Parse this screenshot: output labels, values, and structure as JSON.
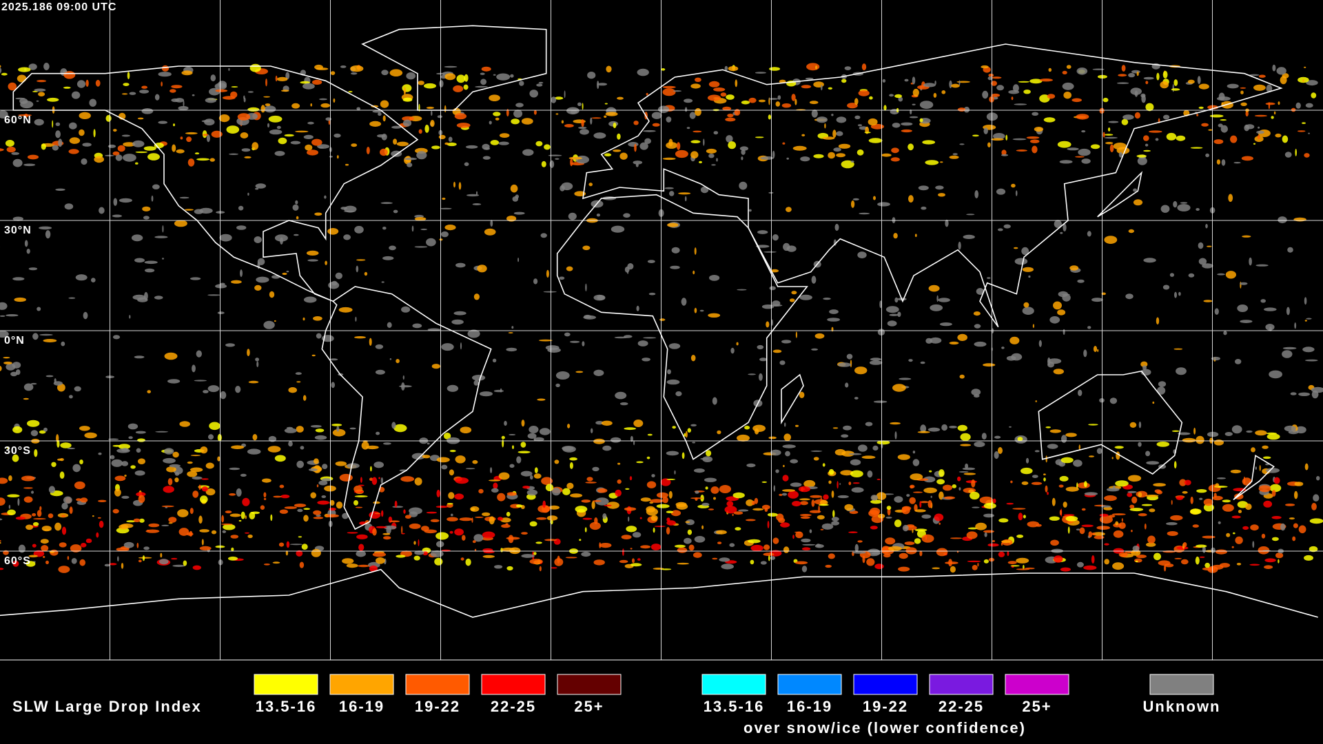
{
  "timestamp": "2025.186 09:00 UTC",
  "latitude_labels": [
    "60°N",
    "30°N",
    "0°N",
    "30°S",
    "60°S"
  ],
  "legend": {
    "title": "SLW Large Drop Index",
    "groups": [
      {
        "items": [
          {
            "label": "13.5-16",
            "color": "#ffff00"
          },
          {
            "label": "16-19",
            "color": "#ffa500"
          },
          {
            "label": "19-22",
            "color": "#ff5a00"
          },
          {
            "label": "22-25",
            "color": "#ff0000"
          },
          {
            "label": "25+",
            "color": "#640000"
          }
        ]
      },
      {
        "items": [
          {
            "label": "13.5-16",
            "color": "#00ffff"
          },
          {
            "label": "16-19",
            "color": "#0088ff"
          },
          {
            "label": "19-22",
            "color": "#0000ff"
          },
          {
            "label": "22-25",
            "color": "#7a1ae0"
          },
          {
            "label": "25+",
            "color": "#cc00cc"
          }
        ],
        "caption": "over snow/ice (lower confidence)"
      }
    ],
    "unknown": {
      "label": "Unknown",
      "color": "#808080"
    }
  }
}
